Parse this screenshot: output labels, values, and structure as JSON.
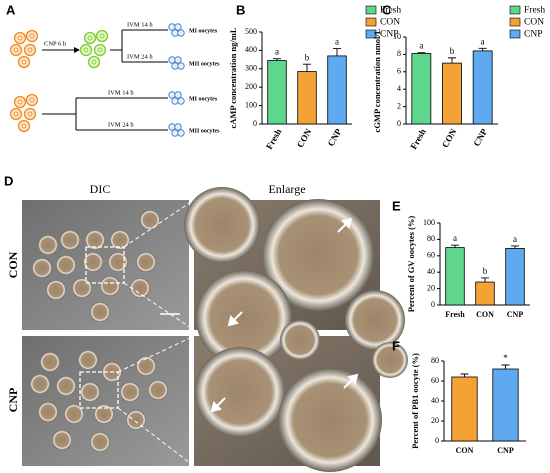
{
  "diagram": {
    "label": "A",
    "rows": [
      {
        "treatment": "CNP 6 h",
        "branches": [
          {
            "step": "IVM 14 h",
            "result": "MI oocytes"
          },
          {
            "step": "IVM 24 h",
            "result": "MII oocytes"
          }
        ]
      },
      {
        "branches": [
          {
            "step": "IVM 14 h",
            "result": "MI oocytes"
          },
          {
            "step": "IVM 24 h",
            "result": "MII oocytes"
          }
        ]
      }
    ]
  },
  "panel_d": {
    "label": "D",
    "columns": [
      "DIC",
      "Enlarge"
    ],
    "rows": [
      "CON",
      "CNP"
    ]
  },
  "chart_data": [
    {
      "type": "bar",
      "panel": "B",
      "y_label": "cAMP concentration ng/mL",
      "categories": [
        "Fresh",
        "CON",
        "CNP"
      ],
      "values": [
        345,
        285,
        370
      ],
      "errors": [
        10,
        40,
        40
      ],
      "annotations": [
        "a",
        "b",
        "a"
      ],
      "colors": [
        "#5ed68c",
        "#f4a236",
        "#5fa9f0"
      ],
      "legend": true,
      "ylim": [
        0,
        500
      ],
      "yticks": [
        0,
        100,
        200,
        300,
        400,
        500
      ]
    },
    {
      "type": "bar",
      "panel": "C",
      "y_label": "cGMP concentration nmol/L",
      "categories": [
        "Fresh",
        "CON",
        "CNP"
      ],
      "values": [
        8.1,
        7.0,
        8.4
      ],
      "errors": [
        0.1,
        0.6,
        0.3
      ],
      "annotations": [
        "a",
        "b",
        "a"
      ],
      "colors": [
        "#5ed68c",
        "#f4a236",
        "#5fa9f0"
      ],
      "legend": true,
      "ylim": [
        0,
        10
      ],
      "yticks": [
        0,
        2,
        4,
        6,
        8,
        10
      ]
    },
    {
      "type": "bar",
      "panel": "E",
      "y_label": "Percent of GV oocytes (%)",
      "categories": [
        "Fresh",
        "CON",
        "CNP"
      ],
      "values": [
        70,
        28,
        69
      ],
      "errors": [
        3,
        5,
        3
      ],
      "annotations": [
        "a",
        "b",
        "a"
      ],
      "colors": [
        "#5ed68c",
        "#f4a236",
        "#5fa9f0"
      ],
      "legend": false,
      "ylim": [
        0,
        100
      ],
      "yticks": [
        0,
        20,
        40,
        60,
        80,
        100
      ]
    },
    {
      "type": "bar",
      "panel": "F",
      "y_label": "Percent of PB1 oocyte (%)",
      "categories": [
        "CON",
        "CNP"
      ],
      "values": [
        64,
        72
      ],
      "errors": [
        3,
        4
      ],
      "annotations": [
        null,
        "*"
      ],
      "colors": [
        "#f4a236",
        "#5fa9f0"
      ],
      "legend": false,
      "ylim": [
        0,
        80
      ],
      "yticks": [
        0,
        20,
        40,
        60,
        80
      ]
    }
  ]
}
